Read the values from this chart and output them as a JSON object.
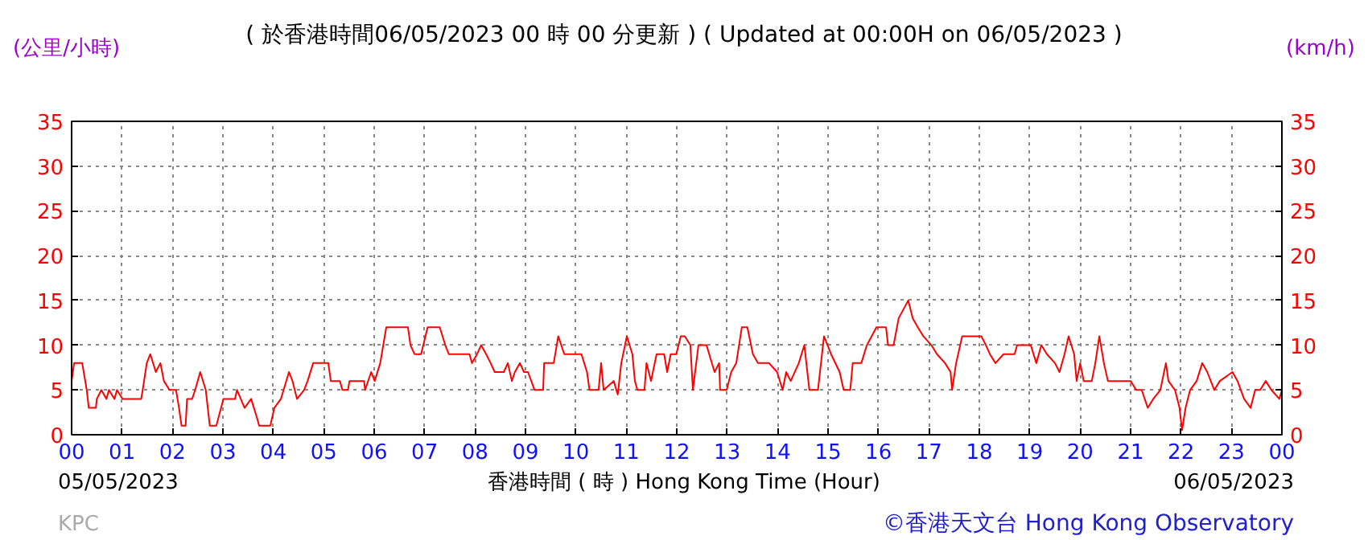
{
  "chart_data": {
    "type": "line",
    "title": "( 於香港時間06/05/2023 00 時 00 分更新 ) ( Updated at 00:00H on 06/05/2023 )",
    "xlabel": "香港時間 ( 時 ) Hong Kong Time (Hour)",
    "ylabel": "(公里/小時)",
    "y2label": "(km/h)",
    "annotations": [
      "05/05/2023",
      "06/05/2023",
      "KPC",
      "©香港天文台 Hong Kong Observatory"
    ],
    "x": [
      0,
      0.05,
      0.21,
      0.3,
      0.34,
      0.48,
      0.5,
      0.59,
      0.69,
      0.74,
      0.85,
      0.9,
      1.01,
      1.38,
      1.41,
      1.49,
      1.56,
      1.67,
      1.76,
      1.83,
      1.94,
      2.07,
      2.13,
      2.18,
      2.26,
      2.29,
      2.39,
      2.45,
      2.55,
      2.66,
      2.74,
      2.87,
      3.01,
      3.24,
      3.28,
      3.43,
      3.56,
      3.67,
      3.72,
      3.94,
      4.02,
      4.15,
      4.31,
      4.38,
      4.47,
      4.61,
      4.68,
      4.79,
      5.09,
      5.14,
      5.32,
      5.37,
      5.48,
      5.51,
      5.8,
      5.82,
      5.94,
      6.01,
      6.12,
      6.24,
      6.56,
      6.67,
      6.72,
      6.8,
      6.93,
      7.06,
      7.3,
      7.41,
      7.48,
      7.89,
      7.94,
      8.04,
      8.12,
      8.22,
      8.31,
      8.39,
      8.57,
      8.65,
      8.73,
      8.79,
      8.89,
      8.97,
      9.05,
      9.18,
      9.35,
      9.37,
      9.56,
      9.65,
      9.77,
      10.11,
      10.22,
      10.27,
      10.45,
      10.5,
      10.55,
      10.75,
      10.83,
      10.9,
      11.01,
      11.12,
      11.17,
      11.22,
      11.36,
      11.4,
      11.49,
      11.6,
      11.75,
      11.81,
      11.88,
      11.99,
      12.08,
      12.16,
      12.27,
      12.32,
      12.43,
      12.59,
      12.75,
      12.84,
      12.86,
      12.99,
      13.08,
      13.18,
      13.29,
      13.4,
      13.51,
      13.61,
      13.83,
      13.99,
      14.1,
      14.17,
      14.26,
      14.42,
      14.53,
      14.63,
      14.8,
      14.92,
      15.06,
      15.23,
      15.31,
      15.44,
      15.49,
      15.66,
      15.77,
      15.96,
      16.15,
      16.19,
      16.3,
      16.4,
      16.59,
      16.68,
      16.78,
      16.89,
      17.05,
      17.16,
      17.32,
      17.43,
      17.46,
      17.54,
      17.66,
      18.04,
      18.13,
      18.21,
      18.32,
      18.48,
      18.7,
      18.75,
      19.02,
      19.13,
      19.23,
      19.34,
      19.5,
      19.59,
      19.69,
      19.77,
      19.88,
      19.93,
      20.0,
      20.07,
      20.23,
      20.3,
      20.38,
      20.47,
      20.55,
      21.0,
      21.11,
      21.22,
      21.34,
      21.45,
      21.59,
      21.7,
      21.75,
      21.88,
      21.97,
      22.02,
      22.09,
      22.18,
      22.31,
      22.42,
      22.52,
      22.66,
      22.77,
      23.02,
      23.12,
      23.25,
      23.38,
      23.47,
      23.57,
      23.68,
      23.79,
      23.95,
      24.0
    ],
    "series": [
      {
        "color": "#ff0000",
        "values": [
          6,
          8,
          8,
          5,
          3,
          3,
          4,
          5,
          4,
          5,
          4,
          5,
          4,
          4,
          5,
          8,
          9,
          7,
          8,
          6,
          5,
          5,
          3,
          1,
          1,
          4,
          4,
          5,
          7,
          5,
          1,
          1,
          4,
          4,
          5,
          3,
          4,
          2,
          1,
          1,
          3,
          4,
          7,
          6,
          4,
          5,
          6,
          8,
          8,
          6,
          6,
          5,
          5,
          6,
          6,
          5,
          7,
          6,
          8,
          12,
          12,
          12,
          10,
          9,
          9,
          12,
          12,
          10,
          9,
          9,
          8,
          9,
          10,
          9,
          8,
          7,
          7,
          8,
          6,
          7,
          8,
          7,
          7,
          5,
          5,
          8,
          8,
          11,
          9,
          9,
          7,
          5,
          5,
          8,
          5,
          6,
          4.5,
          8,
          11,
          9,
          6,
          5,
          5,
          8,
          6,
          9,
          9,
          7,
          9,
          9,
          11,
          11,
          10,
          5,
          10,
          10,
          7,
          8,
          5,
          5,
          7,
          8,
          12,
          12,
          9,
          8,
          8,
          7,
          5,
          7,
          6,
          8,
          10,
          5,
          5,
          11,
          9,
          7,
          5,
          5,
          8,
          8,
          10,
          12,
          12,
          10,
          10,
          13,
          15,
          13,
          12,
          11,
          10,
          9,
          8,
          7,
          5,
          8,
          11,
          11,
          10,
          9,
          8,
          9,
          9,
          10,
          10,
          8,
          10,
          9,
          8,
          7,
          9,
          11,
          9,
          6,
          8,
          6,
          6,
          8,
          11,
          8,
          6,
          6,
          5,
          5,
          3,
          4,
          5,
          8,
          6,
          5,
          3,
          0.5,
          3,
          5,
          6,
          8,
          7,
          5,
          6,
          7,
          6,
          4,
          3,
          5,
          5,
          6,
          5,
          4,
          5
        ]
      }
    ],
    "xlim": [
      0,
      24
    ],
    "xticks": [
      {
        "value": 0,
        "label": "00"
      },
      {
        "value": 1,
        "label": "01"
      },
      {
        "value": 2,
        "label": "02"
      },
      {
        "value": 3,
        "label": "03"
      },
      {
        "value": 4,
        "label": "04"
      },
      {
        "value": 5,
        "label": "05"
      },
      {
        "value": 6,
        "label": "06"
      },
      {
        "value": 7,
        "label": "07"
      },
      {
        "value": 8,
        "label": "08"
      },
      {
        "value": 9,
        "label": "09"
      },
      {
        "value": 10,
        "label": "10"
      },
      {
        "value": 11,
        "label": "11"
      },
      {
        "value": 12,
        "label": "12"
      },
      {
        "value": 13,
        "label": "13"
      },
      {
        "value": 14,
        "label": "14"
      },
      {
        "value": 15,
        "label": "15"
      },
      {
        "value": 16,
        "label": "16"
      },
      {
        "value": 17,
        "label": "17"
      },
      {
        "value": 18,
        "label": "18"
      },
      {
        "value": 19,
        "label": "19"
      },
      {
        "value": 20,
        "label": "20"
      },
      {
        "value": 21,
        "label": "21"
      },
      {
        "value": 22,
        "label": "22"
      },
      {
        "value": 23,
        "label": "23"
      },
      {
        "value": 24,
        "label": "00"
      }
    ],
    "ylim": [
      0,
      35
    ],
    "yticks": [
      0,
      5,
      10,
      15,
      20,
      25,
      30,
      35
    ],
    "y2lim": [
      0,
      35
    ],
    "y2ticks": [
      0,
      5,
      10,
      15,
      20,
      25,
      30,
      35
    ],
    "grid": true,
    "marker": "none",
    "line_style": "solid"
  }
}
